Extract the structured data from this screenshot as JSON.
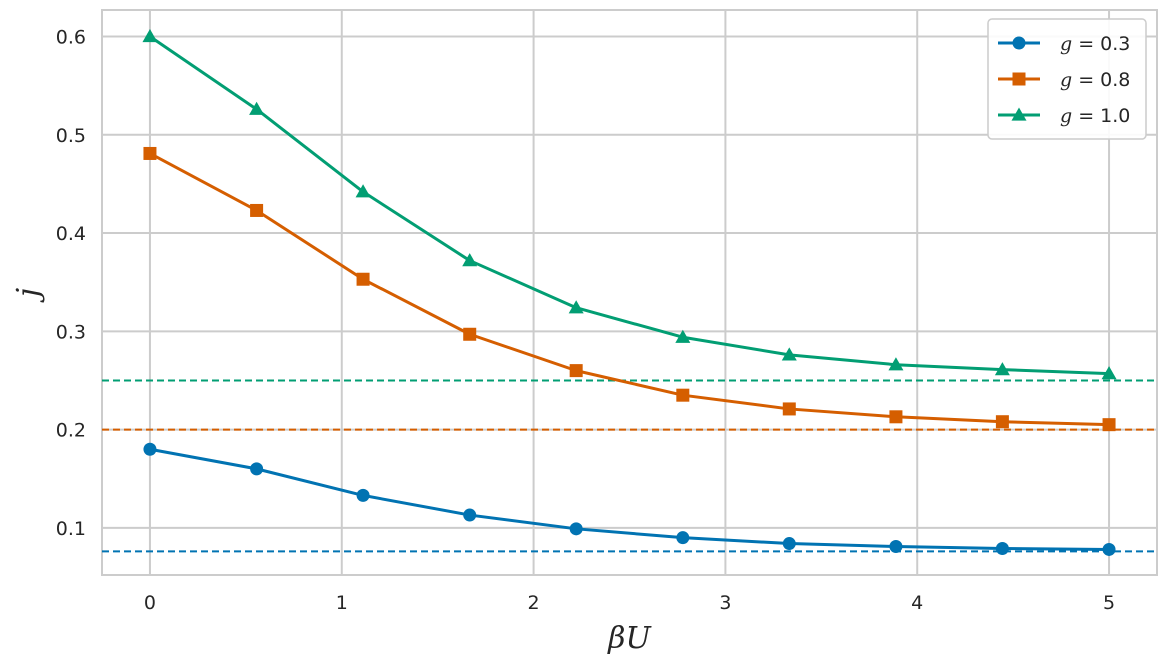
{
  "chart_data": {
    "type": "line",
    "xlabel": "βU",
    "ylabel": "j",
    "xlim": [
      -0.25,
      5.25
    ],
    "ylim": [
      0.052,
      0.627
    ],
    "xticks": [
      0,
      1,
      2,
      3,
      4,
      5
    ],
    "yticks": [
      0.1,
      0.2,
      0.3,
      0.4,
      0.5,
      0.6
    ],
    "grid": true,
    "legend_position": "top-right",
    "x": [
      0,
      0.556,
      1.111,
      1.667,
      2.222,
      2.778,
      3.333,
      3.889,
      4.444,
      5.0
    ],
    "series": [
      {
        "name": "g = 0.3",
        "name_var": "g",
        "name_val": "0.3",
        "color": "#0173b2",
        "marker": "circle",
        "values": [
          0.18,
          0.16,
          0.133,
          0.113,
          0.099,
          0.09,
          0.084,
          0.081,
          0.079,
          0.078
        ]
      },
      {
        "name": "g = 0.8",
        "name_var": "g",
        "name_val": "0.8",
        "color": "#d55e00",
        "marker": "square",
        "values": [
          0.481,
          0.423,
          0.353,
          0.297,
          0.26,
          0.235,
          0.221,
          0.213,
          0.208,
          0.205
        ]
      },
      {
        "name": "g = 1.0",
        "name_var": "g",
        "name_val": "1.0",
        "color": "#029e73",
        "marker": "triangle",
        "values": [
          0.6,
          0.526,
          0.442,
          0.372,
          0.324,
          0.294,
          0.276,
          0.266,
          0.261,
          0.257
        ]
      }
    ],
    "reference_lines": [
      {
        "y": 0.076,
        "color": "#0173b2",
        "style": "dashed"
      },
      {
        "y": 0.2,
        "color": "#d55e00",
        "style": "dashed"
      },
      {
        "y": 0.25,
        "color": "#029e73",
        "style": "dashed"
      }
    ]
  }
}
